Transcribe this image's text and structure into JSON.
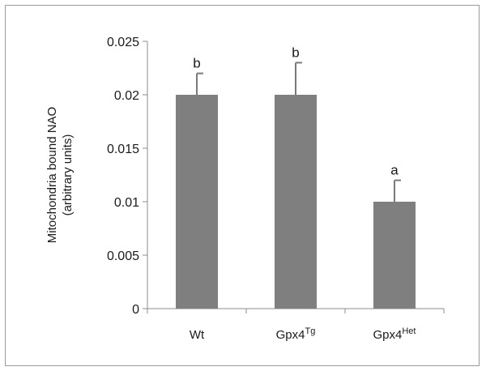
{
  "chart_data": {
    "type": "bar",
    "categories": [
      {
        "base": "Wt",
        "sup": ""
      },
      {
        "base": "Gpx4",
        "sup": "Tg"
      },
      {
        "base": "Gpx4",
        "sup": "Het"
      }
    ],
    "values": [
      0.02,
      0.02,
      0.01
    ],
    "errors": [
      0.002,
      0.003,
      0.002
    ],
    "annotations": [
      "b",
      "b",
      "a"
    ],
    "ylabel_lines": [
      "Mitochondria bound NAO",
      "(arbitrary units)"
    ],
    "ylim": [
      0,
      0.025
    ],
    "yticks": [
      0,
      0.005,
      0.01,
      0.015,
      0.02,
      0.025
    ],
    "ytick_labels": [
      "0",
      "0.005",
      "0.01",
      "0.015",
      "0.02",
      "0.025"
    ],
    "bar_color": "#7f7f7f",
    "grid": false
  }
}
